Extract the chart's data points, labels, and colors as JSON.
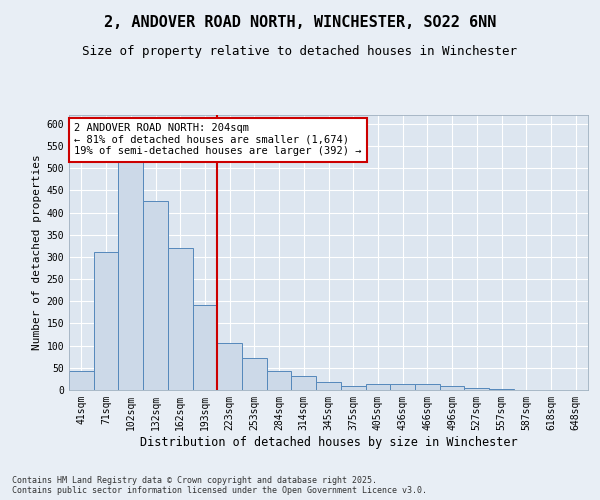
{
  "title_line1": "2, ANDOVER ROAD NORTH, WINCHESTER, SO22 6NN",
  "title_line2": "Size of property relative to detached houses in Winchester",
  "xlabel": "Distribution of detached houses by size in Winchester",
  "ylabel": "Number of detached properties",
  "categories": [
    "41sqm",
    "71sqm",
    "102sqm",
    "132sqm",
    "162sqm",
    "193sqm",
    "223sqm",
    "253sqm",
    "284sqm",
    "314sqm",
    "345sqm",
    "375sqm",
    "405sqm",
    "436sqm",
    "466sqm",
    "496sqm",
    "527sqm",
    "557sqm",
    "587sqm",
    "618sqm",
    "648sqm"
  ],
  "values": [
    42,
    312,
    555,
    425,
    320,
    192,
    105,
    72,
    42,
    32,
    18,
    10,
    14,
    14,
    13,
    10,
    5,
    2,
    1,
    0,
    1
  ],
  "bar_color": "#ccd9e8",
  "bar_edge_color": "#5588bb",
  "vline_color": "#cc0000",
  "annotation_box_text": "2 ANDOVER ROAD NORTH: 204sqm\n← 81% of detached houses are smaller (1,674)\n19% of semi-detached houses are larger (392) →",
  "annotation_box_color": "#cc0000",
  "annotation_box_bg": "#ffffff",
  "footnote": "Contains HM Land Registry data © Crown copyright and database right 2025.\nContains public sector information licensed under the Open Government Licence v3.0.",
  "fig_bg_color": "#e8eef5",
  "plot_bg_color": "#dde6f0",
  "ylim": [
    0,
    620
  ],
  "yticks": [
    0,
    50,
    100,
    150,
    200,
    250,
    300,
    350,
    400,
    450,
    500,
    550,
    600
  ],
  "title_fontsize": 11,
  "subtitle_fontsize": 9,
  "axis_label_fontsize": 8,
  "tick_fontsize": 7,
  "annotation_fontsize": 7.5
}
